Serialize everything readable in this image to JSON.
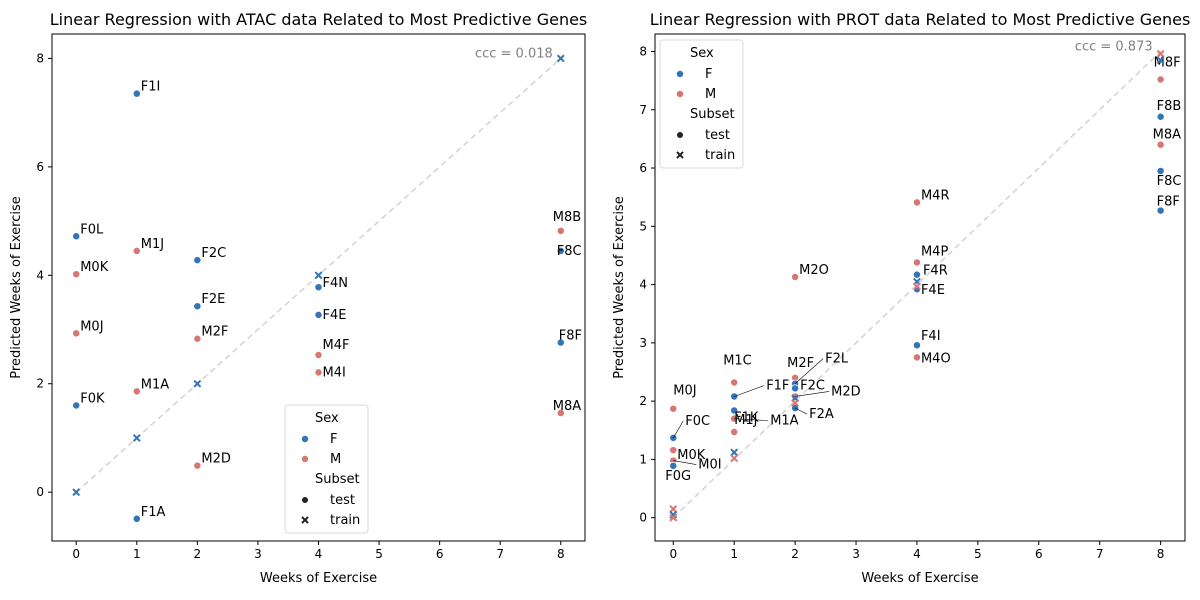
{
  "colors": {
    "F": "#3274b8",
    "M": "#d97672",
    "identity": "#d3d3d3",
    "ccc": "#808080"
  },
  "chart_data": [
    {
      "type": "scatter",
      "title": "Linear Regression with ATAC data Related to Most Predictive Genes",
      "xlabel": "Weeks of Exercise",
      "ylabel": "Predicted Weeks of Exercise",
      "xlim": [
        -0.4,
        8.4
      ],
      "ylim": [
        -0.9,
        8.45
      ],
      "xticks": [
        0,
        1,
        2,
        3,
        4,
        5,
        6,
        7,
        8
      ],
      "yticks": [
        0,
        2,
        4,
        6,
        8
      ],
      "grid": false,
      "identity_line": true,
      "annotation": "ccc = 0.018",
      "legend_placement": "lower-center",
      "legend": {
        "sex_title": "Sex",
        "sex_entries": [
          "F",
          "M"
        ],
        "subset_title": "Subset",
        "subset_entries": [
          "test",
          "train"
        ]
      },
      "points": [
        {
          "x": 1,
          "y": 7.35,
          "sex": "F",
          "subset": "test",
          "label": "F1I"
        },
        {
          "x": 0,
          "y": 4.72,
          "sex": "F",
          "subset": "test",
          "label": "F0L"
        },
        {
          "x": 1,
          "y": 4.45,
          "sex": "M",
          "subset": "test",
          "label": "M1J"
        },
        {
          "x": 2,
          "y": 4.28,
          "sex": "F",
          "subset": "test",
          "label": "F2C"
        },
        {
          "x": 0,
          "y": 4.02,
          "sex": "M",
          "subset": "test",
          "label": "M0K"
        },
        {
          "x": 2,
          "y": 3.43,
          "sex": "F",
          "subset": "test",
          "label": "F2E"
        },
        {
          "x": 0,
          "y": 2.93,
          "sex": "M",
          "subset": "test",
          "label": "M0J"
        },
        {
          "x": 2,
          "y": 2.83,
          "sex": "M",
          "subset": "test",
          "label": "M2F"
        },
        {
          "x": 4,
          "y": 3.78,
          "sex": "F",
          "subset": "test",
          "label": "F4N"
        },
        {
          "x": 4,
          "y": 3.27,
          "sex": "F",
          "subset": "test",
          "label": "F4E"
        },
        {
          "x": 4,
          "y": 2.53,
          "sex": "M",
          "subset": "test",
          "label": "M4F"
        },
        {
          "x": 4,
          "y": 2.21,
          "sex": "M",
          "subset": "test",
          "label": "M4I"
        },
        {
          "x": 1,
          "y": 1.86,
          "sex": "M",
          "subset": "test",
          "label": "M1A"
        },
        {
          "x": 0,
          "y": 1.6,
          "sex": "F",
          "subset": "test",
          "label": "F0K"
        },
        {
          "x": 2,
          "y": 0.49,
          "sex": "M",
          "subset": "test",
          "label": "M2D"
        },
        {
          "x": 1,
          "y": -0.49,
          "sex": "F",
          "subset": "test",
          "label": "F1A"
        },
        {
          "x": 8,
          "y": 4.82,
          "sex": "M",
          "subset": "test",
          "label": "M8B"
        },
        {
          "x": 8,
          "y": 4.45,
          "sex": "F",
          "subset": "test",
          "label": "F8C"
        },
        {
          "x": 8,
          "y": 2.76,
          "sex": "F",
          "subset": "test",
          "label": "F8F"
        },
        {
          "x": 8,
          "y": 1.46,
          "sex": "M",
          "subset": "test",
          "label": "M8A"
        },
        {
          "x": 0,
          "y": 0.0,
          "sex": "F",
          "subset": "train"
        },
        {
          "x": 1,
          "y": 1.0,
          "sex": "F",
          "subset": "train"
        },
        {
          "x": 2,
          "y": 2.0,
          "sex": "F",
          "subset": "train"
        },
        {
          "x": 4,
          "y": 4.0,
          "sex": "F",
          "subset": "train"
        },
        {
          "x": 8,
          "y": 8.0,
          "sex": "F",
          "subset": "train"
        }
      ]
    },
    {
      "type": "scatter",
      "title": "Linear Regression with PROT data Related to Most Predictive Genes",
      "xlabel": "Weeks of Exercise",
      "ylabel": "Predicted Weeks of Exercise",
      "xlim": [
        -0.3,
        8.4
      ],
      "ylim": [
        -0.4,
        8.3
      ],
      "xticks": [
        0,
        1,
        2,
        3,
        4,
        5,
        6,
        7,
        8
      ],
      "yticks": [
        0,
        1,
        2,
        3,
        4,
        5,
        6,
        7,
        8
      ],
      "grid": false,
      "identity_line": true,
      "annotation": "ccc = 0.873",
      "legend_placement": "upper-left",
      "legend": {
        "sex_title": "Sex",
        "sex_entries": [
          "F",
          "M"
        ],
        "subset_title": "Subset",
        "subset_entries": [
          "test",
          "train"
        ]
      },
      "points": [
        {
          "x": 8,
          "y": 7.52,
          "sex": "M",
          "subset": "test",
          "label": "M8F"
        },
        {
          "x": 8,
          "y": 6.88,
          "sex": "F",
          "subset": "test",
          "label": "F8B"
        },
        {
          "x": 8,
          "y": 6.4,
          "sex": "M",
          "subset": "test",
          "label": "M8A"
        },
        {
          "x": 8,
          "y": 5.95,
          "sex": "F",
          "subset": "test",
          "label": "F8C"
        },
        {
          "x": 8,
          "y": 5.27,
          "sex": "F",
          "subset": "test",
          "label": "F8F"
        },
        {
          "x": 4,
          "y": 5.41,
          "sex": "M",
          "subset": "test",
          "label": "M4R"
        },
        {
          "x": 4,
          "y": 4.38,
          "sex": "M",
          "subset": "test",
          "label": "M4P"
        },
        {
          "x": 4,
          "y": 4.17,
          "sex": "F",
          "subset": "test",
          "label": "F4R"
        },
        {
          "x": 4,
          "y": 3.92,
          "sex": "F",
          "subset": "test",
          "label": "F4E"
        },
        {
          "x": 4,
          "y": 2.96,
          "sex": "F",
          "subset": "test",
          "label": "F4I"
        },
        {
          "x": 4,
          "y": 2.75,
          "sex": "M",
          "subset": "test",
          "label": "M4O"
        },
        {
          "x": 2,
          "y": 4.13,
          "sex": "M",
          "subset": "test",
          "label": "M2O"
        },
        {
          "x": 2,
          "y": 2.4,
          "sex": "M",
          "subset": "test",
          "label": "M2F"
        },
        {
          "x": 2,
          "y": 2.3,
          "sex": "F",
          "subset": "test",
          "label": "F2L"
        },
        {
          "x": 2,
          "y": 2.22,
          "sex": "F",
          "subset": "test",
          "label": "F2C"
        },
        {
          "x": 2,
          "y": 2.08,
          "sex": "M",
          "subset": "test",
          "label": "M2D"
        },
        {
          "x": 2,
          "y": 1.88,
          "sex": "F",
          "subset": "test",
          "label": "F2A"
        },
        {
          "x": 1,
          "y": 2.32,
          "sex": "M",
          "subset": "test",
          "label": "M1C"
        },
        {
          "x": 1,
          "y": 2.08,
          "sex": "F",
          "subset": "test",
          "label": "F1F"
        },
        {
          "x": 1,
          "y": 1.84,
          "sex": "F",
          "subset": "test",
          "label": "F1K"
        },
        {
          "x": 1,
          "y": 1.7,
          "sex": "M",
          "subset": "test",
          "label": "M1A"
        },
        {
          "x": 1,
          "y": 1.47,
          "sex": "M",
          "subset": "test",
          "label": "M1J"
        },
        {
          "x": 0,
          "y": 1.87,
          "sex": "M",
          "subset": "test",
          "label": "M0J"
        },
        {
          "x": 0,
          "y": 1.37,
          "sex": "F",
          "subset": "test",
          "label": "F0C"
        },
        {
          "x": 0,
          "y": 1.16,
          "sex": "M",
          "subset": "test",
          "label": "M0K"
        },
        {
          "x": 0,
          "y": 0.98,
          "sex": "M",
          "subset": "test",
          "label": "M0I"
        },
        {
          "x": 0,
          "y": 0.89,
          "sex": "F",
          "subset": "test",
          "label": "F0G"
        },
        {
          "x": 0,
          "y": 0.15,
          "sex": "M",
          "subset": "train"
        },
        {
          "x": 0,
          "y": 0.05,
          "sex": "F",
          "subset": "train"
        },
        {
          "x": 0,
          "y": 0.0,
          "sex": "M",
          "subset": "train"
        },
        {
          "x": 1,
          "y": 1.12,
          "sex": "F",
          "subset": "train"
        },
        {
          "x": 1,
          "y": 1.02,
          "sex": "M",
          "subset": "train"
        },
        {
          "x": 2,
          "y": 2.05,
          "sex": "F",
          "subset": "train"
        },
        {
          "x": 2,
          "y": 1.97,
          "sex": "M",
          "subset": "train"
        },
        {
          "x": 4,
          "y": 4.05,
          "sex": "F",
          "subset": "train"
        },
        {
          "x": 4,
          "y": 3.97,
          "sex": "M",
          "subset": "train"
        },
        {
          "x": 8,
          "y": 7.96,
          "sex": "M",
          "subset": "train"
        },
        {
          "x": 8,
          "y": 7.85,
          "sex": "F",
          "subset": "train"
        }
      ]
    }
  ]
}
